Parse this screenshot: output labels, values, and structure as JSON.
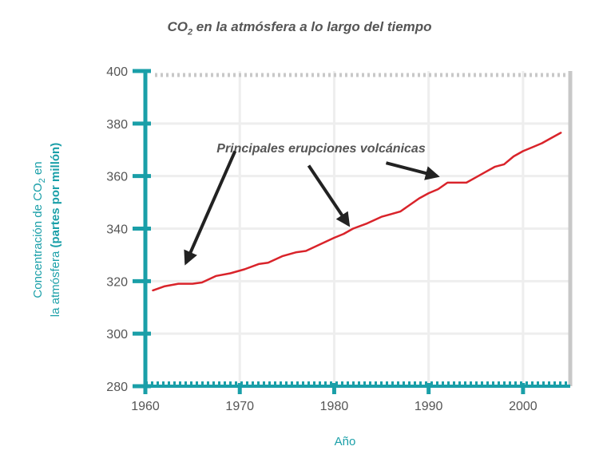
{
  "chart_data": {
    "type": "line",
    "title_main": "CO",
    "title_sub": "2",
    "title_rest": " en la atmósfera a lo largo del tiempo",
    "xlabel": "Año",
    "ylabel_line1_a": "Concentración de CO",
    "ylabel_line1_sub": "2",
    "ylabel_line1_b": " en",
    "ylabel_line2_a": "la atmósfera ",
    "ylabel_line2_b": "(partes por millón)",
    "xlim": [
      1960,
      2005
    ],
    "ylim": [
      280,
      400
    ],
    "x_ticks": [
      1960,
      1970,
      1980,
      1990,
      2000
    ],
    "y_ticks": [
      280,
      300,
      320,
      340,
      360,
      380,
      400
    ],
    "x_tick_labels": [
      "1960",
      "1970",
      "1980",
      "1990",
      "2000"
    ],
    "y_tick_labels": [
      "280",
      "300",
      "320",
      "340",
      "360",
      "380",
      "400"
    ],
    "grid": true,
    "series": [
      {
        "color": "#d9232a",
        "x": [
          1960.8,
          1962,
          1963.5,
          1965,
          1966,
          1967.5,
          1969,
          1970.5,
          1972,
          1973,
          1974.5,
          1976,
          1977,
          1978.5,
          1980,
          1981,
          1982,
          1983.5,
          1985,
          1986,
          1987,
          1988,
          1989,
          1990,
          1991,
          1992,
          1993,
          1994,
          1995,
          1996,
          1997,
          1998,
          1999,
          2000,
          2001,
          2002,
          2003,
          2004
        ],
        "y": [
          316.5,
          318,
          319,
          319,
          319.5,
          322,
          323,
          324.5,
          326.5,
          327,
          329.5,
          331,
          331.5,
          334,
          336.5,
          338,
          340,
          342,
          344.5,
          345.5,
          346.5,
          349,
          351.5,
          353.5,
          355,
          357.5,
          357.5,
          357.5,
          359.5,
          361.5,
          363.5,
          364.5,
          367.5,
          369.5,
          371,
          372.5,
          374.5,
          376.5
        ]
      }
    ],
    "annotations": [
      {
        "text": "Principales erupciones volcánicas",
        "arrows": [
          {
            "from": [
              1969.5,
              369.5
            ],
            "to": [
              1964.3,
              327
            ]
          },
          {
            "from": [
              1977.3,
              364
            ],
            "to": [
              1981.5,
              341.5
            ]
          },
          {
            "from": [
              1985.5,
              365
            ],
            "to": [
              1990.9,
              360
            ]
          }
        ]
      }
    ],
    "colors": {
      "axis": "#1a9fa8",
      "line": "#d9232a",
      "grid": "#eeeeee",
      "frame": "#c8c8c8",
      "text": "#555555",
      "accent_label": "#1a9fa8"
    }
  }
}
